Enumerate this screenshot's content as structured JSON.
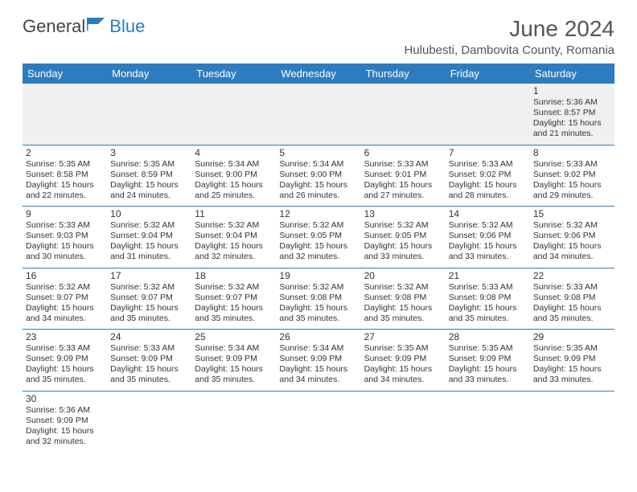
{
  "header": {
    "logo_general": "General",
    "logo_blue": "Blue",
    "title": "June 2024",
    "subtitle": "Hulubesti, Dambovita County, Romania"
  },
  "colors": {
    "header_bg": "#2e7cc0",
    "header_text": "#ffffff",
    "cell_border": "#2e7cc0",
    "empty_bg": "#f0f0f0",
    "body_text": "#333333",
    "title_text": "#555555"
  },
  "day_headers": [
    "Sunday",
    "Monday",
    "Tuesday",
    "Wednesday",
    "Thursday",
    "Friday",
    "Saturday"
  ],
  "weeks": [
    [
      null,
      null,
      null,
      null,
      null,
      null,
      {
        "n": "1",
        "sr": "Sunrise: 5:36 AM",
        "ss": "Sunset: 8:57 PM",
        "d1": "Daylight: 15 hours",
        "d2": "and 21 minutes."
      }
    ],
    [
      {
        "n": "2",
        "sr": "Sunrise: 5:35 AM",
        "ss": "Sunset: 8:58 PM",
        "d1": "Daylight: 15 hours",
        "d2": "and 22 minutes."
      },
      {
        "n": "3",
        "sr": "Sunrise: 5:35 AM",
        "ss": "Sunset: 8:59 PM",
        "d1": "Daylight: 15 hours",
        "d2": "and 24 minutes."
      },
      {
        "n": "4",
        "sr": "Sunrise: 5:34 AM",
        "ss": "Sunset: 9:00 PM",
        "d1": "Daylight: 15 hours",
        "d2": "and 25 minutes."
      },
      {
        "n": "5",
        "sr": "Sunrise: 5:34 AM",
        "ss": "Sunset: 9:00 PM",
        "d1": "Daylight: 15 hours",
        "d2": "and 26 minutes."
      },
      {
        "n": "6",
        "sr": "Sunrise: 5:33 AM",
        "ss": "Sunset: 9:01 PM",
        "d1": "Daylight: 15 hours",
        "d2": "and 27 minutes."
      },
      {
        "n": "7",
        "sr": "Sunrise: 5:33 AM",
        "ss": "Sunset: 9:02 PM",
        "d1": "Daylight: 15 hours",
        "d2": "and 28 minutes."
      },
      {
        "n": "8",
        "sr": "Sunrise: 5:33 AM",
        "ss": "Sunset: 9:02 PM",
        "d1": "Daylight: 15 hours",
        "d2": "and 29 minutes."
      }
    ],
    [
      {
        "n": "9",
        "sr": "Sunrise: 5:33 AM",
        "ss": "Sunset: 9:03 PM",
        "d1": "Daylight: 15 hours",
        "d2": "and 30 minutes."
      },
      {
        "n": "10",
        "sr": "Sunrise: 5:32 AM",
        "ss": "Sunset: 9:04 PM",
        "d1": "Daylight: 15 hours",
        "d2": "and 31 minutes."
      },
      {
        "n": "11",
        "sr": "Sunrise: 5:32 AM",
        "ss": "Sunset: 9:04 PM",
        "d1": "Daylight: 15 hours",
        "d2": "and 32 minutes."
      },
      {
        "n": "12",
        "sr": "Sunrise: 5:32 AM",
        "ss": "Sunset: 9:05 PM",
        "d1": "Daylight: 15 hours",
        "d2": "and 32 minutes."
      },
      {
        "n": "13",
        "sr": "Sunrise: 5:32 AM",
        "ss": "Sunset: 9:05 PM",
        "d1": "Daylight: 15 hours",
        "d2": "and 33 minutes."
      },
      {
        "n": "14",
        "sr": "Sunrise: 5:32 AM",
        "ss": "Sunset: 9:06 PM",
        "d1": "Daylight: 15 hours",
        "d2": "and 33 minutes."
      },
      {
        "n": "15",
        "sr": "Sunrise: 5:32 AM",
        "ss": "Sunset: 9:06 PM",
        "d1": "Daylight: 15 hours",
        "d2": "and 34 minutes."
      }
    ],
    [
      {
        "n": "16",
        "sr": "Sunrise: 5:32 AM",
        "ss": "Sunset: 9:07 PM",
        "d1": "Daylight: 15 hours",
        "d2": "and 34 minutes."
      },
      {
        "n": "17",
        "sr": "Sunrise: 5:32 AM",
        "ss": "Sunset: 9:07 PM",
        "d1": "Daylight: 15 hours",
        "d2": "and 35 minutes."
      },
      {
        "n": "18",
        "sr": "Sunrise: 5:32 AM",
        "ss": "Sunset: 9:07 PM",
        "d1": "Daylight: 15 hours",
        "d2": "and 35 minutes."
      },
      {
        "n": "19",
        "sr": "Sunrise: 5:32 AM",
        "ss": "Sunset: 9:08 PM",
        "d1": "Daylight: 15 hours",
        "d2": "and 35 minutes."
      },
      {
        "n": "20",
        "sr": "Sunrise: 5:32 AM",
        "ss": "Sunset: 9:08 PM",
        "d1": "Daylight: 15 hours",
        "d2": "and 35 minutes."
      },
      {
        "n": "21",
        "sr": "Sunrise: 5:33 AM",
        "ss": "Sunset: 9:08 PM",
        "d1": "Daylight: 15 hours",
        "d2": "and 35 minutes."
      },
      {
        "n": "22",
        "sr": "Sunrise: 5:33 AM",
        "ss": "Sunset: 9:08 PM",
        "d1": "Daylight: 15 hours",
        "d2": "and 35 minutes."
      }
    ],
    [
      {
        "n": "23",
        "sr": "Sunrise: 5:33 AM",
        "ss": "Sunset: 9:09 PM",
        "d1": "Daylight: 15 hours",
        "d2": "and 35 minutes."
      },
      {
        "n": "24",
        "sr": "Sunrise: 5:33 AM",
        "ss": "Sunset: 9:09 PM",
        "d1": "Daylight: 15 hours",
        "d2": "and 35 minutes."
      },
      {
        "n": "25",
        "sr": "Sunrise: 5:34 AM",
        "ss": "Sunset: 9:09 PM",
        "d1": "Daylight: 15 hours",
        "d2": "and 35 minutes."
      },
      {
        "n": "26",
        "sr": "Sunrise: 5:34 AM",
        "ss": "Sunset: 9:09 PM",
        "d1": "Daylight: 15 hours",
        "d2": "and 34 minutes."
      },
      {
        "n": "27",
        "sr": "Sunrise: 5:35 AM",
        "ss": "Sunset: 9:09 PM",
        "d1": "Daylight: 15 hours",
        "d2": "and 34 minutes."
      },
      {
        "n": "28",
        "sr": "Sunrise: 5:35 AM",
        "ss": "Sunset: 9:09 PM",
        "d1": "Daylight: 15 hours",
        "d2": "and 33 minutes."
      },
      {
        "n": "29",
        "sr": "Sunrise: 5:35 AM",
        "ss": "Sunset: 9:09 PM",
        "d1": "Daylight: 15 hours",
        "d2": "and 33 minutes."
      }
    ],
    [
      {
        "n": "30",
        "sr": "Sunrise: 5:36 AM",
        "ss": "Sunset: 9:09 PM",
        "d1": "Daylight: 15 hours",
        "d2": "and 32 minutes."
      },
      null,
      null,
      null,
      null,
      null,
      null
    ]
  ]
}
